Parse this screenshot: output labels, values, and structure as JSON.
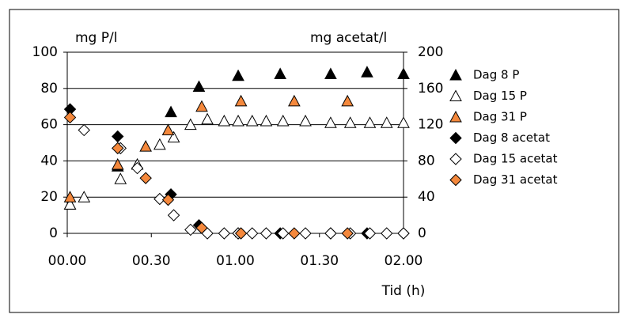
{
  "chart_data": {
    "type": "scatter",
    "y_label": "mg P/l",
    "y2_label": "mg acetat/l",
    "x_label": "Tid (h)",
    "xlim": [
      0,
      120
    ],
    "xticks": [
      {
        "value": 0,
        "label": "00.00"
      },
      {
        "value": 30,
        "label": "00.30"
      },
      {
        "value": 60,
        "label": "01.00"
      },
      {
        "value": 90,
        "label": "01.30"
      },
      {
        "value": 120,
        "label": "02.00"
      }
    ],
    "ylim": [
      0,
      100
    ],
    "yticks": [
      0,
      20,
      40,
      60,
      80,
      100
    ],
    "y2lim": [
      0,
      200
    ],
    "y2ticks": [
      0,
      40,
      80,
      120,
      160,
      200
    ],
    "grid": true,
    "series": [
      {
        "name": "Dag 8 P",
        "marker": "triangle",
        "color": "#000000",
        "x": [
          1,
          18,
          37,
          47,
          61,
          76,
          94,
          107,
          120
        ],
        "values": [
          16,
          37,
          67,
          81,
          87,
          88,
          88,
          89,
          88
        ]
      },
      {
        "name": "Dag 15 P",
        "marker": "triangle",
        "color": "#ffffff",
        "x": [
          1,
          6,
          19,
          25,
          33,
          38,
          44,
          50,
          56,
          61,
          66,
          71,
          77,
          85,
          94,
          101,
          108,
          114,
          120
        ],
        "values": [
          16,
          20,
          30,
          38,
          49,
          53,
          60,
          63,
          62,
          62,
          62,
          62,
          62,
          62,
          61,
          61,
          61,
          61,
          61
        ]
      },
      {
        "name": "Dag 31 P",
        "marker": "triangle",
        "color": "#f4883c",
        "x": [
          1,
          18,
          28,
          36,
          48,
          62,
          81,
          100
        ],
        "values": [
          20,
          38,
          48,
          57,
          70,
          73,
          73,
          73
        ]
      },
      {
        "name": "Dag 8 acetat",
        "marker": "diamond",
        "color": "#000000",
        "axis": "y2",
        "x": [
          1,
          18,
          37,
          47,
          61,
          76,
          94,
          107,
          120
        ],
        "values": [
          137,
          107,
          43,
          9,
          0,
          0,
          0,
          0,
          0
        ]
      },
      {
        "name": "Dag 15 acetat",
        "marker": "diamond",
        "color": "#ffffff",
        "axis": "y2",
        "x": [
          6,
          19,
          25,
          33,
          38,
          44,
          50,
          56,
          61,
          66,
          71,
          77,
          85,
          94,
          101,
          108,
          114,
          120
        ],
        "values": [
          114,
          94,
          72,
          38,
          20,
          4,
          0,
          0,
          0,
          0,
          0,
          0,
          0,
          0,
          0,
          0,
          0,
          0
        ]
      },
      {
        "name": "Dag 31 acetat",
        "marker": "diamond",
        "color": "#f4883c",
        "axis": "y2",
        "x": [
          1,
          18,
          28,
          36,
          48,
          62,
          81,
          100
        ],
        "values": [
          128,
          94,
          61,
          37,
          6,
          0,
          0,
          0
        ]
      }
    ]
  }
}
